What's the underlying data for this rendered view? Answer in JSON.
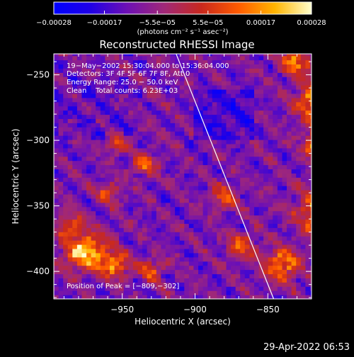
{
  "chart_data": {
    "type": "heatmap",
    "title": "Reconstructed RHESSI Image",
    "xlabel": "Heliocentric X (arcsec)",
    "ylabel": "Heliocentric Y (arcsec)",
    "xlim": [
      -997,
      -820
    ],
    "ylim": [
      -421,
      -234
    ],
    "x_ticks": [
      -950,
      -900,
      -850
    ],
    "y_ticks": [
      -250,
      -300,
      -350,
      -400
    ],
    "x_tick_labels": [
      "−950",
      "−900",
      "−850"
    ],
    "y_tick_labels": [
      "−250",
      "−300",
      "−350",
      "−400"
    ],
    "colorbar": {
      "min": -0.00028,
      "max": 0.00028,
      "ticks": [
        -0.00028,
        -0.00017,
        -5.5e-05,
        5.5e-05,
        0.00017,
        0.00028
      ],
      "tick_labels": [
        "−0.00028",
        "−0.00017",
        "−5.5e−05",
        "5.5e−05",
        "0.00017",
        "0.00028"
      ],
      "unit_label": "(photons cm⁻² s⁻¹ asec⁻²)"
    },
    "annotations": [
      "19−May−2002 15:30:04.000 to 15:36:04.000",
      "Detectors: 3F 4F 5F 6F 7F 8F, Att 0",
      "Energy Range: 25.0 − 50.0 keV",
      "Clean    Total counts: 6.23E+03"
    ],
    "peak_label": "Position of Peak = [−809,−302]",
    "peak": {
      "x": -809,
      "y": -302
    },
    "limb_line": [
      {
        "x": -913,
        "y": -234
      },
      {
        "x": -846,
        "y": -421
      }
    ],
    "grid": false,
    "colormap": [
      "#0000ff",
      "#2000e6",
      "#6e10b4",
      "#a02878",
      "#c8281e",
      "#ff5a00",
      "#ffb400",
      "#ffffcd"
    ]
  },
  "footer": {
    "timestamp": "29-Apr-2022 06:53"
  }
}
